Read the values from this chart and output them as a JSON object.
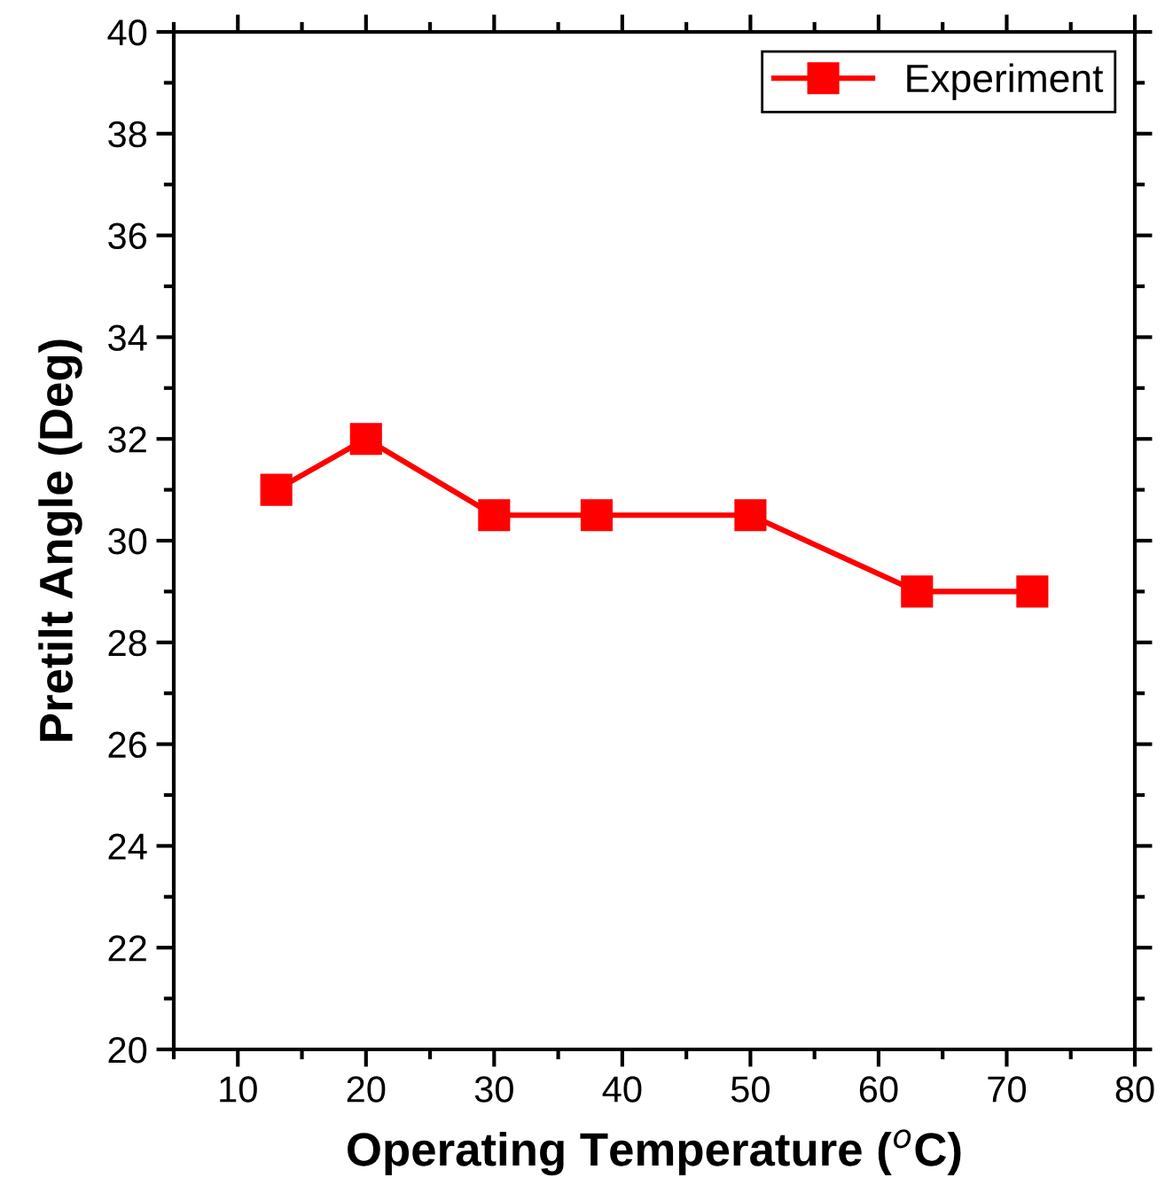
{
  "chart_data": {
    "type": "line",
    "xlabel": "Operating Temperature ($^{o}$C)",
    "ylabel": "Pretilt Angle (Deg)",
    "x": [
      13,
      20,
      30,
      38,
      50,
      63,
      72
    ],
    "series": [
      {
        "name": "Experiment",
        "color": "#ff0000",
        "values": [
          31,
          32,
          30.5,
          30.5,
          30.5,
          29,
          29
        ]
      }
    ],
    "xlim": [
      5,
      80
    ],
    "xticks": [
      {
        "value": 5,
        "label": null
      },
      10,
      {
        "value": 15,
        "label": null
      },
      20,
      {
        "value": 25,
        "label": null
      },
      30,
      {
        "value": 35,
        "label": null
      },
      40,
      {
        "value": 45,
        "label": null
      },
      50,
      {
        "value": 55,
        "label": null
      },
      60,
      {
        "value": 65,
        "label": null
      },
      70,
      {
        "value": 75,
        "label": null
      },
      80
    ],
    "ylim": [
      20,
      40
    ],
    "yticks": [
      20,
      {
        "value": 21,
        "label": null
      },
      22,
      {
        "value": 23,
        "label": null
      },
      24,
      {
        "value": 25,
        "label": null
      },
      26,
      {
        "value": 27,
        "label": null
      },
      28,
      {
        "value": 29,
        "label": null
      },
      30,
      {
        "value": 31,
        "label": null
      },
      32,
      {
        "value": 33,
        "label": null
      },
      34,
      {
        "value": 35,
        "label": null
      },
      36,
      {
        "value": 37,
        "label": null
      },
      38,
      {
        "value": 39,
        "label": null
      },
      40
    ],
    "marker": "square",
    "line_style": "solid",
    "grid": false,
    "legend": "top right"
  }
}
